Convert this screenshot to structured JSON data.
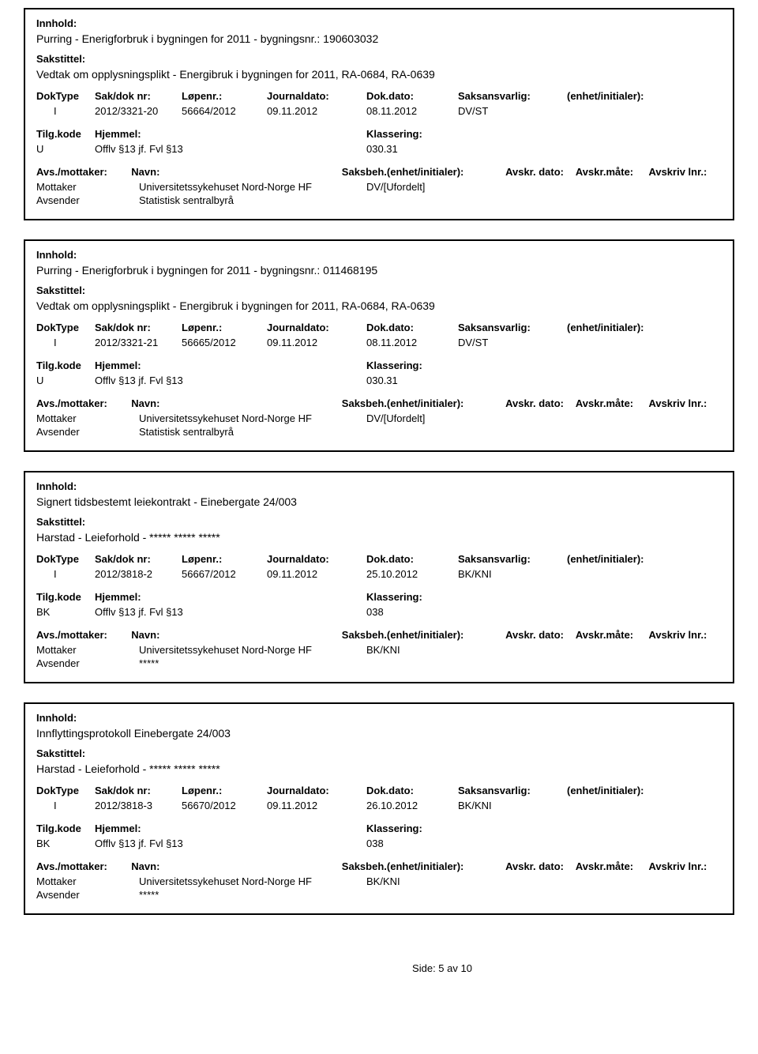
{
  "labels": {
    "innhold": "Innhold:",
    "sakstittel": "Sakstittel:",
    "doktype": "DokType",
    "sakdoknr": "Sak/dok nr:",
    "lopenr": "Løpenr.:",
    "journaldato": "Journaldato:",
    "dokdato": "Dok.dato:",
    "saksansvarlig": "Saksansvarlig:",
    "enhetinitialer": "(enhet/initialer):",
    "tilgkode": "Tilg.kode",
    "hjemmel": "Hjemmel:",
    "klassering": "Klassering:",
    "avsmottaker": "Avs./mottaker:",
    "navn": "Navn:",
    "saksbeh": "Saksbeh.(enhet/initialer):",
    "avskrdato": "Avskr. dato:",
    "avskrmate": "Avskr.måte:",
    "avskrivlnr": "Avskriv lnr.:",
    "mottaker": "Mottaker",
    "avsender": "Avsender"
  },
  "records": [
    {
      "innhold": "Purring - Enerigforbruk i bygningen for 2011 - bygningsnr.: 190603032",
      "sakstittel": "Vedtak om opplysningsplikt - Energibruk i bygningen for 2011, RA-0684, RA-0639",
      "doktype": "I",
      "sakdoknr": "2012/3321-20",
      "lopenr": "56664/2012",
      "journaldato": "09.11.2012",
      "dokdato": "08.11.2012",
      "saksansvarlig": "DV/ST",
      "tilgkode": "U",
      "hjemmel": "Offlv §13 jf. Fvl §13",
      "klassering": "030.31",
      "mottaker_name": "Universitetssykehuset Nord-Norge HF",
      "mottaker_saksbeh": "DV/[Ufordelt]",
      "avsender_name": "Statistisk sentralbyrå"
    },
    {
      "innhold": "Purring - Enerigforbruk i bygningen for 2011 - bygningsnr.: 011468195",
      "sakstittel": "Vedtak om opplysningsplikt - Energibruk i bygningen for 2011, RA-0684, RA-0639",
      "doktype": "I",
      "sakdoknr": "2012/3321-21",
      "lopenr": "56665/2012",
      "journaldato": "09.11.2012",
      "dokdato": "08.11.2012",
      "saksansvarlig": "DV/ST",
      "tilgkode": "U",
      "hjemmel": "Offlv §13 jf. Fvl §13",
      "klassering": "030.31",
      "mottaker_name": "Universitetssykehuset Nord-Norge HF",
      "mottaker_saksbeh": "DV/[Ufordelt]",
      "avsender_name": "Statistisk sentralbyrå"
    },
    {
      "innhold": "Signert tidsbestemt leiekontrakt - Einebergate 24/003",
      "sakstittel": "Harstad - Leieforhold - ***** ***** *****",
      "doktype": "I",
      "sakdoknr": "2012/3818-2",
      "lopenr": "56667/2012",
      "journaldato": "09.11.2012",
      "dokdato": "25.10.2012",
      "saksansvarlig": "BK/KNI",
      "tilgkode": "BK",
      "hjemmel": "Offlv §13 jf. Fvl §13",
      "klassering": "038",
      "mottaker_name": "Universitetssykehuset Nord-Norge HF",
      "mottaker_saksbeh": "BK/KNI",
      "avsender_name": "*****"
    },
    {
      "innhold": "Innflyttingsprotokoll Einebergate 24/003",
      "sakstittel": "Harstad - Leieforhold - ***** ***** *****",
      "doktype": "I",
      "sakdoknr": "2012/3818-3",
      "lopenr": "56670/2012",
      "journaldato": "09.11.2012",
      "dokdato": "26.10.2012",
      "saksansvarlig": "BK/KNI",
      "tilgkode": "BK",
      "hjemmel": "Offlv §13 jf. Fvl §13",
      "klassering": "038",
      "mottaker_name": "Universitetssykehuset Nord-Norge HF",
      "mottaker_saksbeh": "BK/KNI",
      "avsender_name": "*****"
    }
  ],
  "footer": "Side: 5 av 10"
}
